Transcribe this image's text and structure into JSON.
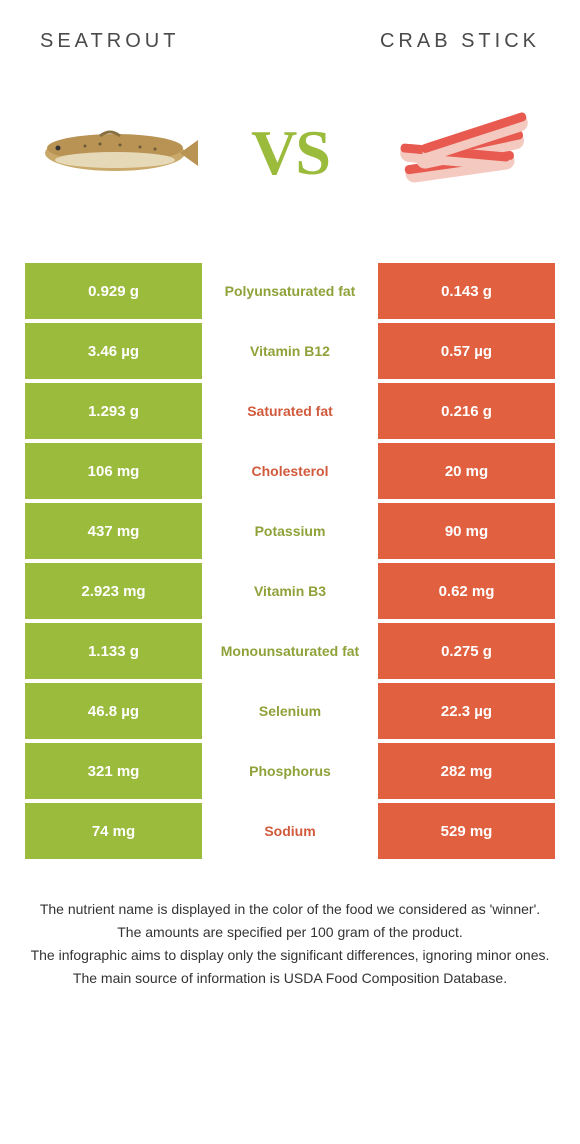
{
  "header": {
    "left_title": "Seatrout",
    "right_title": "Crab stick"
  },
  "vs_text": "VS",
  "colors": {
    "left_bg": "#9bbb3c",
    "right_bg": "#e0603f",
    "left_winner_text": "#8fa23a",
    "right_winner_text": "#d15a3c",
    "white": "#ffffff",
    "footer_text": "#333333"
  },
  "table": {
    "rows": [
      {
        "left": "0.929 g",
        "label": "Polyunsaturated fat",
        "right": "0.143 g",
        "winner": "left"
      },
      {
        "left": "3.46 µg",
        "label": "Vitamin B12",
        "right": "0.57 µg",
        "winner": "left"
      },
      {
        "left": "1.293 g",
        "label": "Saturated fat",
        "right": "0.216 g",
        "winner": "right"
      },
      {
        "left": "106 mg",
        "label": "Cholesterol",
        "right": "20 mg",
        "winner": "right"
      },
      {
        "left": "437 mg",
        "label": "Potassium",
        "right": "90 mg",
        "winner": "left"
      },
      {
        "left": "2.923 mg",
        "label": "Vitamin B3",
        "right": "0.62 mg",
        "winner": "left"
      },
      {
        "left": "1.133 g",
        "label": "Monounsaturated fat",
        "right": "0.275 g",
        "winner": "left"
      },
      {
        "left": "46.8 µg",
        "label": "Selenium",
        "right": "22.3 µg",
        "winner": "left"
      },
      {
        "left": "321 mg",
        "label": "Phosphorus",
        "right": "282 mg",
        "winner": "left"
      },
      {
        "left": "74 mg",
        "label": "Sodium",
        "right": "529 mg",
        "winner": "right"
      }
    ]
  },
  "footer": {
    "line1": "The nutrient name is displayed in the color of the food we considered as 'winner'.",
    "line2": "The amounts are specified per 100 gram of the product.",
    "line3": "The infographic aims to display only the significant differences, ignoring minor ones.",
    "line4": "The main source of information is USDA Food Composition Database."
  }
}
